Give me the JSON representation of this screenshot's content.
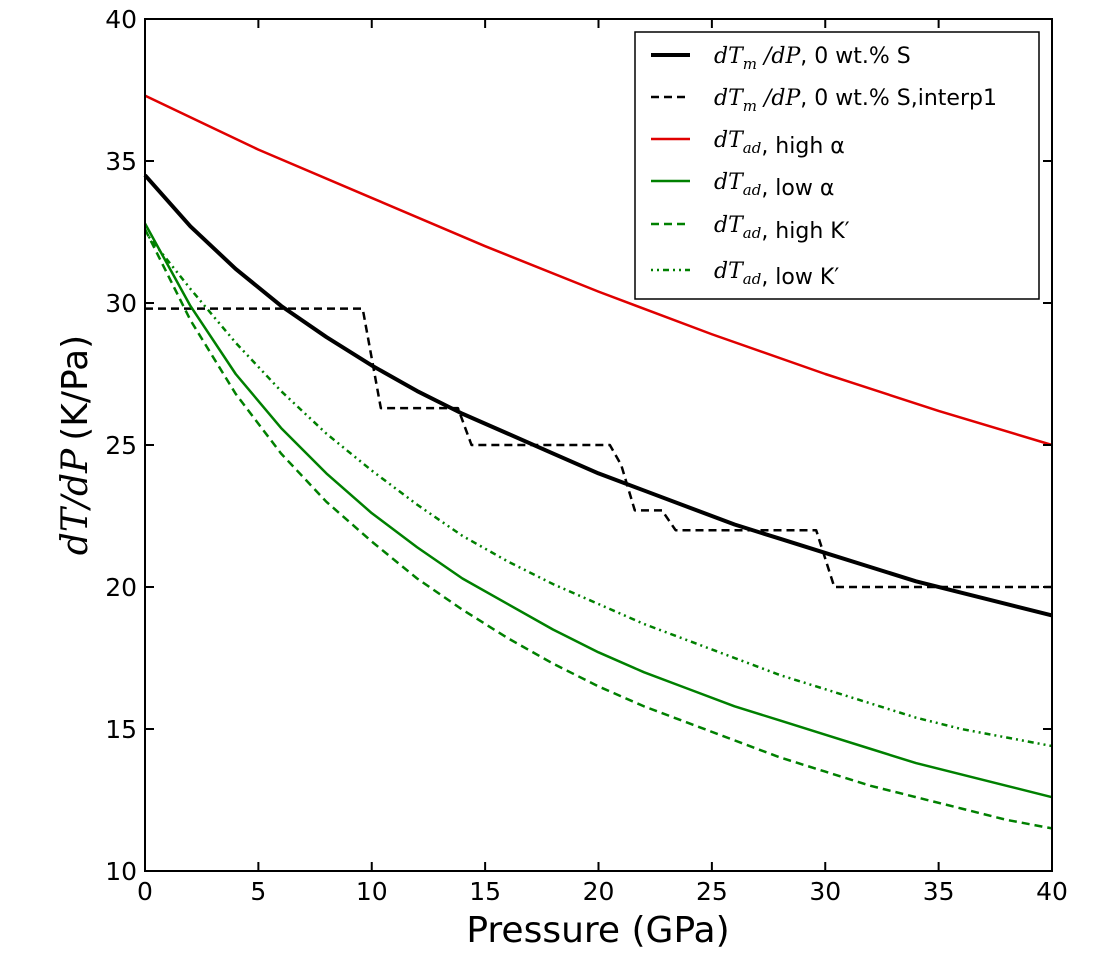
{
  "chart_data": {
    "type": "line",
    "xlabel": "Pressure (GPa)",
    "ylabel": {
      "math": "dT/dP",
      "unit": "(K/Pa)"
    },
    "xlim": [
      0,
      40
    ],
    "ylim": [
      10,
      40
    ],
    "xticks": [
      0,
      5,
      10,
      15,
      20,
      25,
      30,
      35,
      40
    ],
    "yticks": [
      10,
      15,
      20,
      25,
      30,
      35,
      40
    ],
    "grid": false,
    "legend_position": "top-right",
    "series": [
      {
        "label_math": "dT_m /dP",
        "label_text": ", 0 wt.% S",
        "color": "#000000",
        "style": "solid",
        "x": [
          0,
          2,
          4,
          6,
          8,
          10,
          12,
          14,
          16,
          18,
          20,
          22,
          24,
          26,
          28,
          30,
          32,
          34,
          36,
          38,
          40
        ],
        "y": [
          34.5,
          32.7,
          31.2,
          29.9,
          28.8,
          27.8,
          26.9,
          26.1,
          25.4,
          24.7,
          24.0,
          23.4,
          22.8,
          22.2,
          21.7,
          21.2,
          20.7,
          20.2,
          19.8,
          19.4,
          19.0
        ]
      },
      {
        "label_math": "dT_m /dP",
        "label_text": ", 0 wt.% S,interp1",
        "color": "#000000",
        "style": "dashed",
        "x": [
          0,
          9.6,
          10.4,
          13.8,
          14.4,
          20.5,
          21.0,
          21.6,
          22.8,
          23.4,
          29.6,
          30.4,
          40
        ],
        "y": [
          29.8,
          29.8,
          26.3,
          26.3,
          25.0,
          25.0,
          24.3,
          22.7,
          22.7,
          22.0,
          22.0,
          20.0,
          20.0
        ]
      },
      {
        "label_math": "dT_ad",
        "label_text": ", high α",
        "color": "#e00000",
        "style": "solid",
        "x": [
          0,
          5,
          10,
          15,
          20,
          25,
          30,
          35,
          40
        ],
        "y": [
          37.3,
          35.4,
          33.7,
          32.0,
          30.4,
          28.9,
          27.5,
          26.2,
          25.0
        ]
      },
      {
        "label_math": "dT_ad",
        "label_text": ", low α",
        "color": "#008000",
        "style": "solid",
        "x": [
          0,
          2,
          4,
          6,
          8,
          10,
          12,
          14,
          16,
          18,
          20,
          22,
          24,
          26,
          28,
          30,
          32,
          34,
          36,
          38,
          40
        ],
        "y": [
          32.8,
          29.9,
          27.5,
          25.6,
          24.0,
          22.6,
          21.4,
          20.3,
          19.4,
          18.5,
          17.7,
          17.0,
          16.4,
          15.8,
          15.3,
          14.8,
          14.3,
          13.8,
          13.4,
          13.0,
          12.6
        ]
      },
      {
        "label_math": "dT_ad",
        "label_text": ", high K′",
        "color": "#008000",
        "style": "dashed",
        "x": [
          0,
          2,
          4,
          6,
          8,
          10,
          12,
          14,
          16,
          18,
          20,
          22,
          24,
          26,
          28,
          30,
          32,
          34,
          36,
          38,
          40
        ],
        "y": [
          32.6,
          29.4,
          26.8,
          24.7,
          23.0,
          21.6,
          20.3,
          19.2,
          18.2,
          17.3,
          16.5,
          15.8,
          15.2,
          14.6,
          14.0,
          13.5,
          13.0,
          12.6,
          12.2,
          11.8,
          11.5
        ]
      },
      {
        "label_math": "dT_ad",
        "label_text": ", low K′",
        "color": "#008000",
        "style": "dashdot",
        "x": [
          0,
          2,
          4,
          6,
          8,
          10,
          12,
          14,
          16,
          18,
          20,
          22,
          24,
          26,
          28,
          30,
          32,
          34,
          36,
          38,
          40
        ],
        "y": [
          32.5,
          30.5,
          28.6,
          26.9,
          25.4,
          24.1,
          22.9,
          21.8,
          20.9,
          20.1,
          19.4,
          18.7,
          18.1,
          17.5,
          16.9,
          16.4,
          15.9,
          15.4,
          15.0,
          14.7,
          14.4
        ]
      }
    ]
  }
}
